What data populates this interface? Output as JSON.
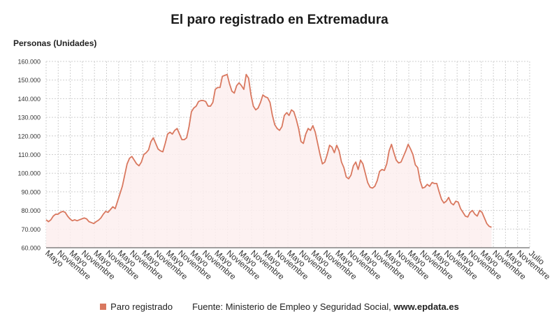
{
  "chart_data": {
    "type": "area",
    "title": "El paro registrado en Extremadura",
    "ylabel": "Personas (Unidades)",
    "xlabel": "",
    "ylim": [
      60000,
      160000
    ],
    "yticks": [
      60000,
      70000,
      80000,
      90000,
      100000,
      110000,
      120000,
      130000,
      140000,
      150000,
      160000
    ],
    "ytick_labels": [
      "60.000",
      "70.000",
      "80.000",
      "90.000",
      "100.000",
      "110.000",
      "120.000",
      "130.000",
      "140.000",
      "150.000",
      "160.000"
    ],
    "xtick_labels": [
      "Mayo",
      "Noviembre",
      "Mayo",
      "Noviembre",
      "Mayo",
      "Noviembre",
      "Mayo",
      "Noviembre",
      "Mayo",
      "Noviembre",
      "Mayo",
      "Noviembre",
      "Mayo",
      "Noviembre",
      "Mayo",
      "Noviembre",
      "Mayo",
      "Noviembre",
      "Mayo",
      "Noviembre",
      "Mayo",
      "Noviembre",
      "Mayo",
      "Noviembre",
      "Mayo",
      "Noviembre",
      "Mayo",
      "Noviembre",
      "Mayo",
      "Noviembre",
      "Mayo",
      "Noviembre",
      "Mayo",
      "Noviembre",
      "Mayo",
      "Noviembre",
      "Mayo",
      "Noviembre",
      "Mayo",
      "Noviembre",
      "Julio"
    ],
    "grid": true,
    "legend_position": "bottom",
    "series": [
      {
        "name": "Paro registrado",
        "color": "#d9785f",
        "fill": "#fdeeee",
        "values": [
          75000,
          74000,
          75000,
          77000,
          78000,
          78000,
          79000,
          79500,
          79000,
          77000,
          75500,
          74500,
          75000,
          74500,
          75000,
          75500,
          76000,
          75500,
          74000,
          73500,
          73000,
          74000,
          74800,
          76000,
          78000,
          79500,
          79000,
          80500,
          82000,
          81000,
          85000,
          89000,
          93000,
          99000,
          105000,
          108000,
          109000,
          107000,
          105000,
          104000,
          106000,
          110000,
          111000,
          112500,
          117000,
          119000,
          116000,
          113000,
          112000,
          111500,
          116000,
          121000,
          122000,
          121000,
          123000,
          124000,
          121000,
          118000,
          118000,
          119000,
          125000,
          133000,
          135000,
          136000,
          138500,
          139000,
          139000,
          138500,
          136000,
          136000,
          138000,
          145000,
          146000,
          146000,
          152000,
          152500,
          153000,
          148000,
          144000,
          143000,
          147000,
          148500,
          147000,
          145000,
          153000,
          151000,
          142000,
          136000,
          134000,
          135000,
          138000,
          142000,
          141000,
          140500,
          138000,
          131000,
          126000,
          124000,
          123000,
          125000,
          131000,
          132500,
          131000,
          134000,
          133000,
          129000,
          124000,
          117000,
          116000,
          121000,
          124000,
          123000,
          125500,
          122000,
          116000,
          110000,
          105000,
          106000,
          110000,
          115000,
          114000,
          111000,
          115000,
          112000,
          106000,
          103000,
          98000,
          97000,
          99000,
          104000,
          106000,
          102000,
          107000,
          105000,
          100000,
          95000,
          92500,
          92000,
          93000,
          96000,
          101000,
          102000,
          101500,
          105000,
          112000,
          115500,
          111000,
          107000,
          105500,
          106000,
          109000,
          112000,
          115500,
          113000,
          110000,
          104500,
          103000,
          96000,
          92000,
          92500,
          94000,
          93000,
          95000,
          94500,
          94500,
          90000,
          86000,
          84000,
          85000,
          87000,
          84000,
          83000,
          85000,
          84500,
          81000,
          79000,
          77000,
          76500,
          79000,
          80000,
          78000,
          77000,
          80000,
          79000,
          76000,
          73000,
          71500,
          71000
        ]
      }
    ],
    "x_range": [
      0,
      203
    ]
  },
  "legend": {
    "series_label": "Paro registrado",
    "source_prefix": "Fuente: Ministerio de Empleo y Seguridad Social, ",
    "source_site": "www.epdata.es"
  }
}
